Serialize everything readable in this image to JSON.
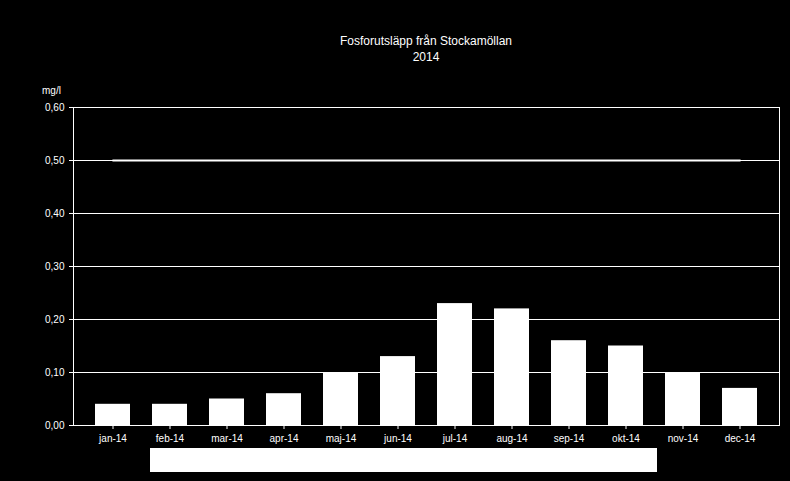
{
  "chart_data": {
    "type": "bar",
    "title": "Fosforutsläpp från Stockamöllan",
    "subtitle": "2014",
    "ylabel": "mg/l",
    "categories": [
      "jan-14",
      "feb-14",
      "mar-14",
      "apr-14",
      "maj-14",
      "jun-14",
      "jul-14",
      "aug-14",
      "sep-14",
      "okt-14",
      "nov-14",
      "dec-14"
    ],
    "series": [
      {
        "type": "bar",
        "color": "#ffffff",
        "values": [
          0.04,
          0.04,
          0.05,
          0.06,
          0.1,
          0.13,
          0.23,
          0.22,
          0.16,
          0.15,
          0.1,
          0.07
        ]
      },
      {
        "type": "line",
        "color": "#ffffff",
        "values": [
          0.5,
          0.5,
          0.5,
          0.5,
          0.5,
          0.5,
          0.5,
          0.5,
          0.5,
          0.5,
          0.5,
          0.5
        ]
      }
    ],
    "ylim": [
      0,
      0.6
    ],
    "yticks": [
      {
        "value": 0,
        "label": "0,00"
      },
      {
        "value": 0.1,
        "label": "0,10"
      },
      {
        "value": 0.2,
        "label": "0,20"
      },
      {
        "value": 0.3,
        "label": "0,30"
      },
      {
        "value": 0.4,
        "label": "0,40"
      },
      {
        "value": 0.5,
        "label": "0,50"
      },
      {
        "value": 0.6,
        "label": "0,60"
      }
    ],
    "grid": true
  }
}
